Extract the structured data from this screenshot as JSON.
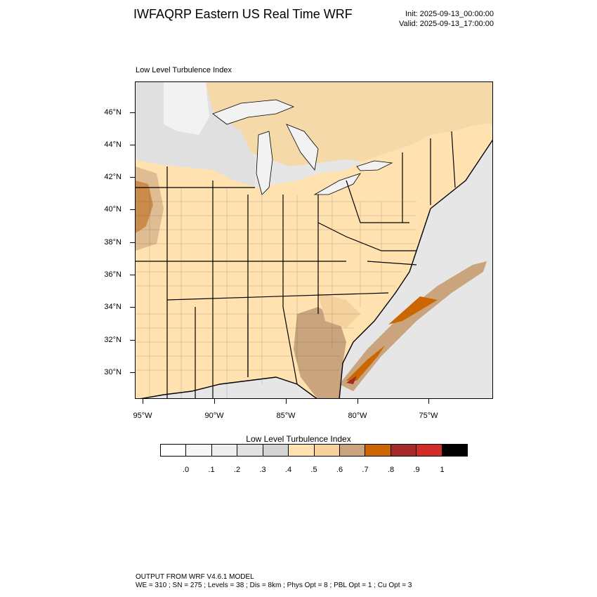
{
  "header": {
    "title": "IWFAQRP Eastern US Real Time WRF",
    "init": "Init: 2025-09-13_00:00:00",
    "valid": "Valid: 2025-09-13_17:00:00"
  },
  "plot": {
    "subtitle": "Low Level Turbulence Index",
    "lat_labels": [
      "46°N",
      "44°N",
      "42°N",
      "40°N",
      "38°N",
      "36°N",
      "34°N",
      "32°N",
      "30°N"
    ],
    "lon_labels": [
      "95°W",
      "90°W",
      "85°W",
      "80°W",
      "75°W"
    ]
  },
  "colorbar": {
    "title": "Low Level Turbulence Index",
    "colors": [
      "#ffffff",
      "#f7f7f7",
      "#eeeeee",
      "#e1e1e1",
      "#d4d4d4",
      "#ffe2b0",
      "#f5d19e",
      "#c9a47d",
      "#cc6600",
      "#a52a2a",
      "#d42a2a",
      "#000000"
    ],
    "labels": [
      ".0",
      ".1",
      ".2",
      ".3",
      ".4",
      ".5",
      ".6",
      ".7",
      ".8",
      ".9",
      "1"
    ]
  },
  "footer": {
    "line1": "OUTPUT FROM WRF V4.6.1 MODEL",
    "line2": "WE = 310 ; SN = 275 ; Levels = 38 ; Dis = 8km ; Phys Opt = 8 ; PBL Opt = 1 ; Cu Opt = 3"
  }
}
